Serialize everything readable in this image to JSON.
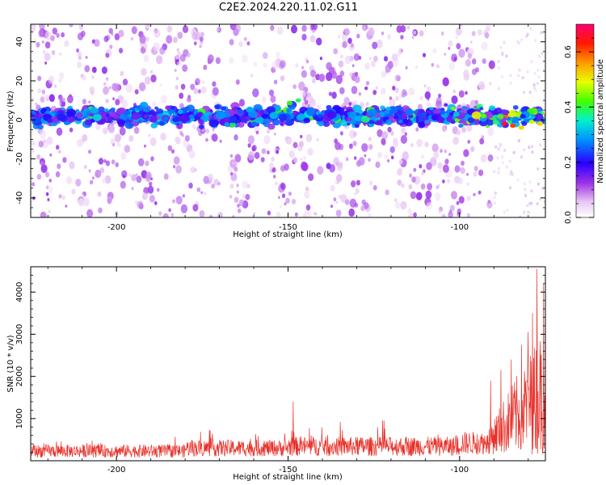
{
  "title": "C2E2.2024.220.11.02.G11",
  "chart_data": [
    {
      "type": "heatmap",
      "xlabel": "Height of straight line (km)",
      "ylabel": "Frequency (Hz)",
      "xlim": [
        -225,
        -75
      ],
      "ylim": [
        -50,
        49
      ],
      "x_ticks": [
        -200,
        -150,
        -100
      ],
      "y_ticks": [
        -40,
        -20,
        0,
        20,
        40
      ],
      "colorbar": {
        "label": "Normalized spectral amplitude",
        "range": [
          0,
          0.7
        ],
        "ticks": [
          0.0,
          0.2,
          0.4,
          0.6
        ],
        "tick_labels": [
          "0.0",
          "0.2",
          "0.4",
          "0.6"
        ],
        "colormap": "rainbow-on-white (white → light purple → purple → blue → cyan → green → yellow → orange → red → pink)"
      },
      "description_values": {
        "band_center_hz": 2,
        "band_halfwidth_hz": 8,
        "band_peak_amplitude": 0.65,
        "band_peak_x_km": -85,
        "background_noise_extent_x_km": [
          -225,
          -90
        ]
      }
    },
    {
      "type": "line",
      "xlabel": "Height of straight line (km)",
      "ylabel": "SNR (10 * v/v)",
      "xlim": [
        -225,
        -75
      ],
      "ylim": [
        0,
        4600
      ],
      "x_ticks": [
        -200,
        -150,
        -100
      ],
      "y_ticks": [
        1000,
        2000,
        3000,
        4000
      ],
      "grid": false,
      "series": [
        {
          "color": "#e8312a",
          "baseline_segments": [
            {
              "x": [
                -225,
                -180
              ],
              "mean": 230,
              "spread": 280
            },
            {
              "x": [
                -180,
                -150
              ],
              "mean": 300,
              "spread": 360
            },
            {
              "x": [
                -150,
                -100
              ],
              "mean": 340,
              "spread": 420
            },
            {
              "x": [
                -100,
                -92
              ],
              "mean": 420,
              "spread": 500
            }
          ],
          "spikes": [
            {
              "x": -148.5,
              "y": 1400
            },
            {
              "x": -122,
              "y": 950
            },
            {
              "x": -91,
              "y": 1900
            },
            {
              "x": -88,
              "y": 2150
            },
            {
              "x": -85,
              "y": 2400
            },
            {
              "x": -82,
              "y": 2750
            },
            {
              "x": -80,
              "y": 3050
            },
            {
              "x": -78.8,
              "y": 3500
            },
            {
              "x": -77.5,
              "y": 4550
            },
            {
              "x": -75.5,
              "y": 4200
            }
          ],
          "high_noise_region": {
            "x": [
              -92,
              -75
            ],
            "floor": 150,
            "ceiling": 3100
          }
        }
      ]
    }
  ],
  "colors": {
    "line": "#e8312a",
    "axis": "#000000"
  }
}
